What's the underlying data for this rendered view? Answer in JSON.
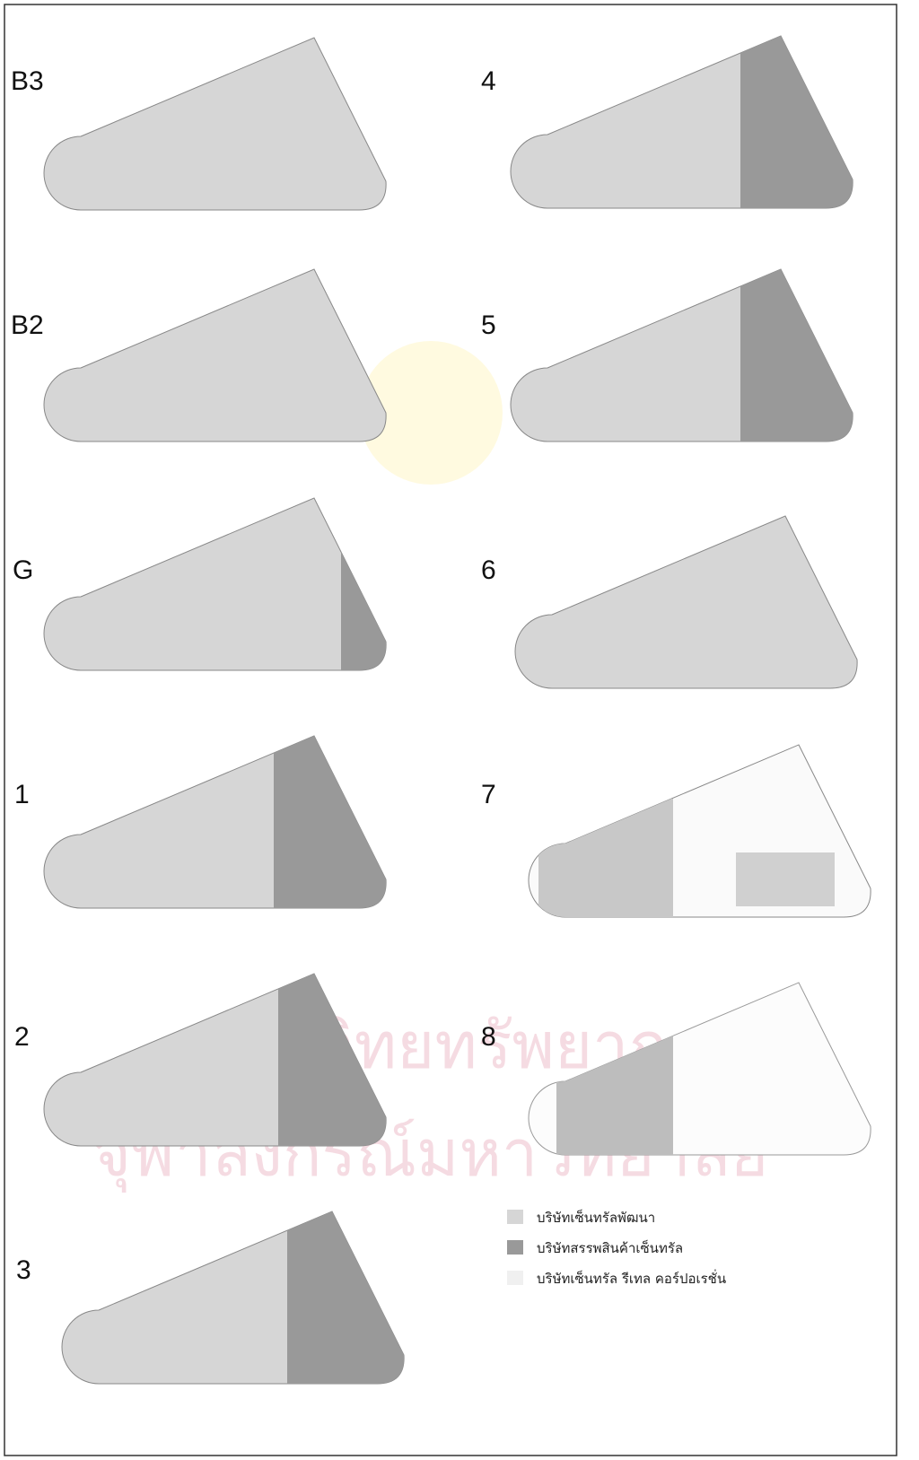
{
  "floors": [
    {
      "label": "B3"
    },
    {
      "label": "B2"
    },
    {
      "label": "G"
    },
    {
      "label": "1"
    },
    {
      "label": "2"
    },
    {
      "label": "3"
    },
    {
      "label": "4"
    },
    {
      "label": "5"
    },
    {
      "label": "6"
    },
    {
      "label": "7"
    },
    {
      "label": "8"
    }
  ],
  "legend": [
    {
      "label": "บริษัทเซ็นทรัลพัฒนา"
    },
    {
      "label": "บริษัทสรรพสินค้าเซ็นทรัล"
    },
    {
      "label": "บริษัทเซ็นทรัล รีเทล คอร์ปอเรชั่น"
    }
  ],
  "watermark": [
    "ศูนย์วิทยทรัพยากร",
    "จุฬาลงกรณ์มหาวิทยาลัย"
  ]
}
